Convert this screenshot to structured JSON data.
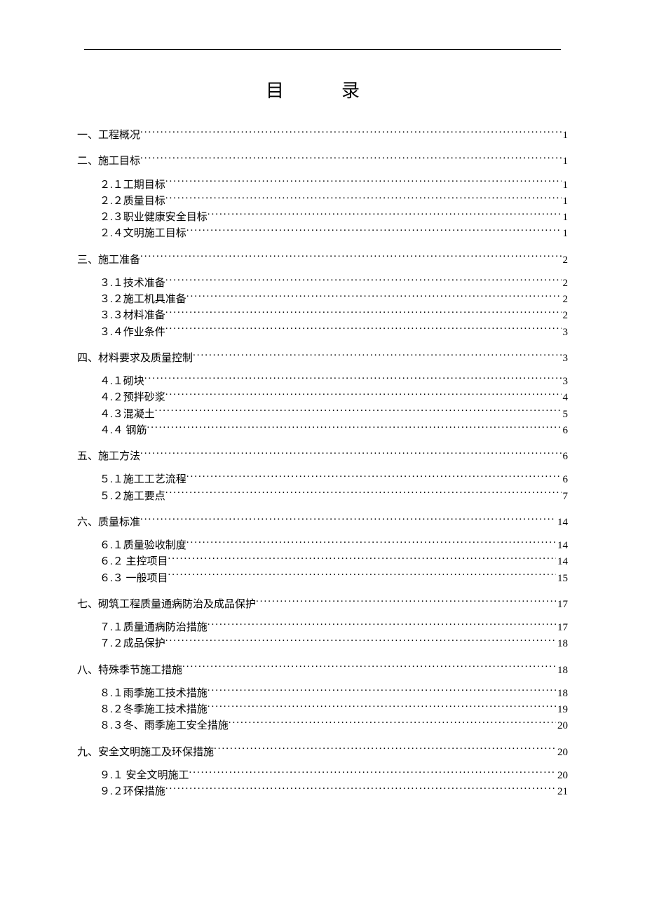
{
  "title": "目　录",
  "text_color": "#000000",
  "background_color": "#ffffff",
  "font_family": "SimSun",
  "title_fontsize": 26,
  "body_fontsize": 15,
  "sections": [
    {
      "label": "一、工程概况",
      "page": "1",
      "subs": []
    },
    {
      "label": "二、施工目标",
      "page": "1",
      "subs": [
        {
          "label": "２.１工期目标",
          "page": "1"
        },
        {
          "label": "２.２质量目标",
          "page": "1"
        },
        {
          "label": "２.３职业健康安全目标",
          "page": "1"
        },
        {
          "label": "２.４文明施工目标",
          "page": "1"
        }
      ]
    },
    {
      "label": "三、施工准备",
      "page": "2",
      "subs": [
        {
          "label": "３.１技术准备",
          "page": "2"
        },
        {
          "label": "３.２施工机具准备",
          "page": "2"
        },
        {
          "label": "３.３材料准备",
          "page": "2"
        },
        {
          "label": "３.４作业条件",
          "page": "3"
        }
      ]
    },
    {
      "label": "四、材料要求及质量控制",
      "page": "3",
      "subs": [
        {
          "label": "４.１砌块",
          "page": "3"
        },
        {
          "label": "４.２预拌砂浆",
          "page": "4"
        },
        {
          "label": "４.３混凝土",
          "page": "5"
        },
        {
          "label": "４.４ 钢筋",
          "page": "6"
        }
      ]
    },
    {
      "label": "五、施工方法",
      "page": "6",
      "subs": [
        {
          "label": "５.１施工工艺流程",
          "page": "6"
        },
        {
          "label": "５.２施工要点",
          "page": "7"
        }
      ]
    },
    {
      "label": "六、质量标准",
      "page": "14",
      "subs": [
        {
          "label": "６.１质量验收制度",
          "page": "14"
        },
        {
          "label": "６.２ 主控项目",
          "page": "14"
        },
        {
          "label": "６.３ 一般项目",
          "page": "15"
        }
      ]
    },
    {
      "label": "七、砌筑工程质量通病防治及成品保护",
      "page": "17",
      "subs": [
        {
          "label": "７.１质量通病防治措施",
          "page": "17"
        },
        {
          "label": "７.２成品保护",
          "page": "18"
        }
      ]
    },
    {
      "label": "八、特殊季节施工措施",
      "page": "18",
      "subs": [
        {
          "label": "８.１雨季施工技术措施",
          "page": "18"
        },
        {
          "label": "８.２冬季施工技术措施",
          "page": "19"
        },
        {
          "label": "８.３冬、雨季施工安全措施",
          "page": "20"
        }
      ]
    },
    {
      "label": "九、安全文明施工及环保措施",
      "page": "20",
      "subs": [
        {
          "label": "９.１ 安全文明施工",
          "page": "20"
        },
        {
          "label": "９.２环保措施",
          "page": "21"
        }
      ]
    }
  ]
}
